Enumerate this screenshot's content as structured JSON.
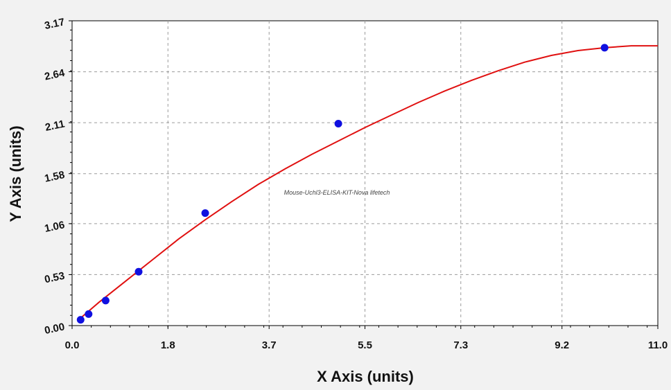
{
  "chart_data": {
    "type": "scatter",
    "title": "",
    "xlabel": "X Axis (units)",
    "ylabel": "Y Axis (units)",
    "watermark": "Mouse-Uchl3-ELISA-KIT-Nova lifetech",
    "xlim": [
      0,
      11.0
    ],
    "ylim": [
      0,
      3.17
    ],
    "x_ticks": [
      0,
      1.8,
      3.7,
      5.5,
      7.3,
      9.2,
      11.0
    ],
    "x_tick_labels": [
      "0.0",
      "1.8",
      "3.7",
      "5.5",
      "7.3",
      "9.2",
      "11.0"
    ],
    "y_ticks": [
      0,
      0.53,
      1.06,
      1.58,
      2.11,
      2.64,
      3.17
    ],
    "y_tick_labels": [
      "0.00",
      "0.53",
      "1.06",
      "1.58",
      "2.11",
      "2.64",
      "3.17"
    ],
    "grid": true,
    "series": [
      {
        "type": "scatter",
        "color": "#1010e0",
        "x": [
          0.16,
          0.31,
          0.63,
          1.25,
          2.5,
          5.0,
          10.0
        ],
        "y": [
          0.06,
          0.12,
          0.26,
          0.56,
          1.17,
          2.1,
          2.89
        ]
      },
      {
        "type": "line",
        "color": "#e01010",
        "x": [
          0.1,
          0.5,
          1.0,
          1.5,
          2.0,
          2.5,
          3.0,
          3.5,
          4.0,
          4.5,
          5.0,
          5.5,
          6.0,
          6.5,
          7.0,
          7.5,
          8.0,
          8.5,
          9.0,
          9.5,
          10.0,
          10.5,
          11.0
        ],
        "y": [
          0.05,
          0.24,
          0.46,
          0.68,
          0.9,
          1.1,
          1.29,
          1.47,
          1.63,
          1.78,
          1.92,
          2.06,
          2.19,
          2.32,
          2.44,
          2.55,
          2.65,
          2.74,
          2.81,
          2.86,
          2.89,
          2.91,
          2.91
        ]
      }
    ]
  }
}
